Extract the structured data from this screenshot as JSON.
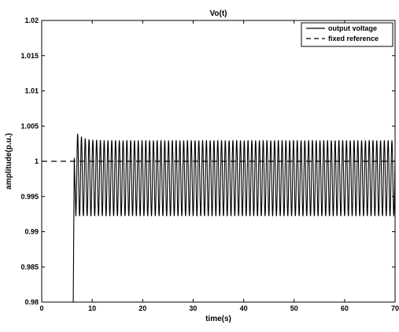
{
  "chart_data": {
    "type": "line",
    "title": "Vo(t)",
    "xlabel": "time(s)",
    "ylabel": "amplitude(p.u.)",
    "xlim": [
      0,
      70
    ],
    "ylim": [
      0.98,
      1.02
    ],
    "x_ticks": [
      0,
      10,
      20,
      30,
      40,
      50,
      60,
      70
    ],
    "x_tick_labels": [
      "0",
      "10",
      "20",
      "30",
      "40",
      "50",
      "60",
      "70"
    ],
    "y_ticks": [
      0.98,
      0.985,
      0.99,
      0.995,
      1.0,
      1.005,
      1.01,
      1.015,
      1.02
    ],
    "y_tick_labels": [
      "0.98",
      "0.985",
      "0.99",
      "0.995",
      "1",
      "1.005",
      "1.01",
      "1.015",
      "1.02"
    ],
    "grid": false,
    "legend_position": "top-right",
    "series": [
      {
        "name": "output voltage",
        "style": "solid",
        "color": "#000000",
        "start_time": 6.2,
        "initial_rise_to": 1.0005,
        "first_peak": 1.0043,
        "steady_max": 1.003,
        "steady_min": 0.9922,
        "oscillation_period": 0.75,
        "end_time": 70
      },
      {
        "name": "fixed reference",
        "style": "dashed",
        "color": "#000000",
        "x": [
          0,
          70
        ],
        "y": [
          1.0,
          1.0
        ]
      }
    ]
  }
}
